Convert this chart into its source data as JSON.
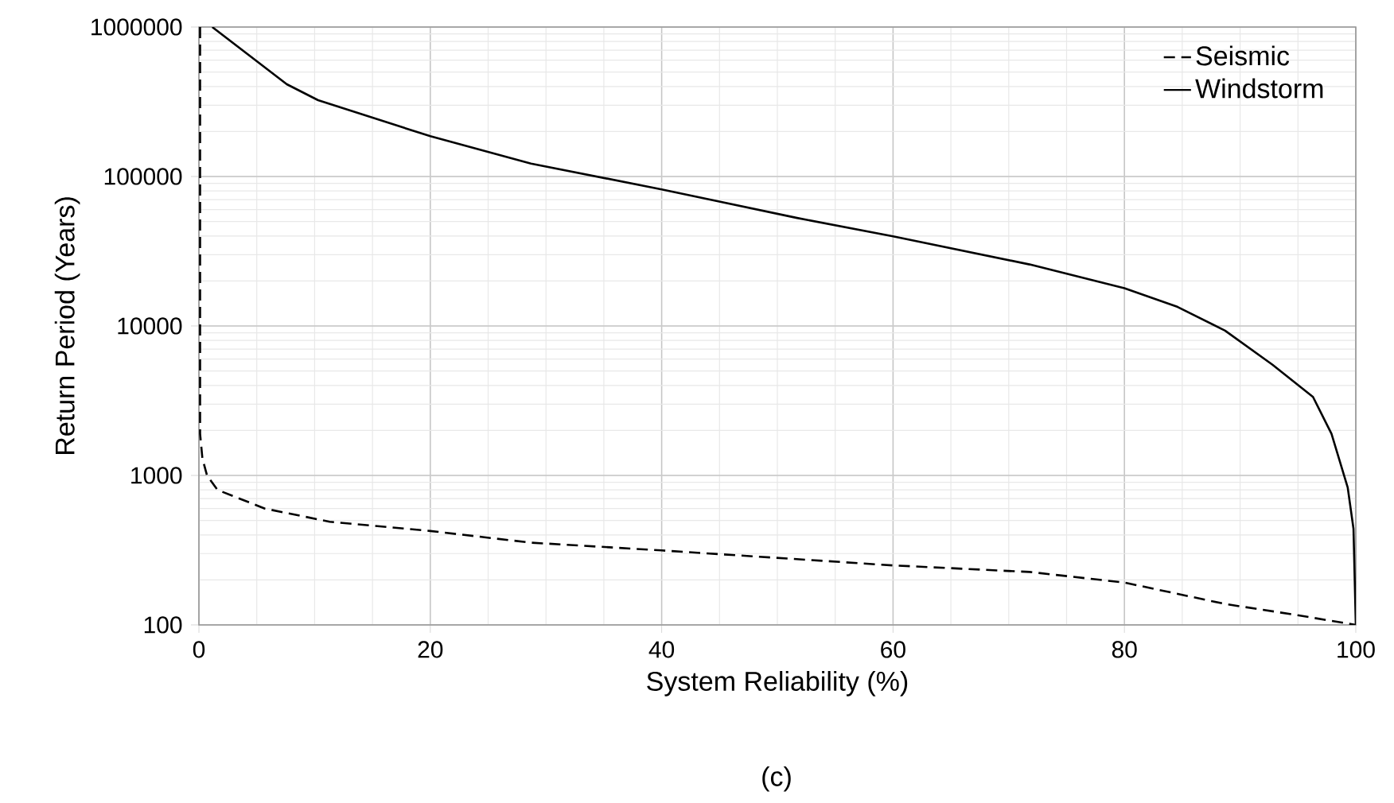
{
  "chart_data": {
    "type": "line",
    "xlabel": "System Reliability (%)",
    "ylabel": "Return Period (Years)",
    "annotations": [
      "(c)"
    ],
    "xlim": [
      0,
      100
    ],
    "xticks": [
      0,
      20,
      40,
      60,
      80,
      100
    ],
    "ylim": [
      100,
      1000000
    ],
    "yticks": [
      100,
      1000,
      10000,
      100000,
      1000000
    ],
    "log": "y",
    "grid": true,
    "legend": "top right",
    "marker": "none",
    "series": [
      {
        "name": "Seismic",
        "color": "#000000",
        "line_style": "dashed",
        "x": [
          0.1,
          0.1,
          0.3,
          0.7,
          1.6,
          5.7,
          11.3,
          20,
          28.7,
          40,
          60,
          71.8,
          80,
          88.7,
          94.7,
          100
        ],
        "values": [
          1000000,
          1900,
          1300,
          1000,
          800,
          600,
          490,
          425,
          355,
          315,
          250,
          226,
          192,
          138,
          117,
          100
        ]
      },
      {
        "name": "Windstorm",
        "color": "#000000",
        "line_style": "solid",
        "x": [
          1.15,
          7.6,
          10.3,
          20,
          28.7,
          40,
          51.7,
          60,
          71.8,
          80,
          84.6,
          88.7,
          92.8,
          96.3,
          97.9,
          99.3,
          99.8,
          100
        ],
        "values": [
          1000000,
          414000,
          324000,
          186000,
          122000,
          82000,
          52800,
          39800,
          25800,
          17900,
          13400,
          9300,
          5500,
          3350,
          1900,
          830,
          440,
          100
        ]
      }
    ]
  }
}
